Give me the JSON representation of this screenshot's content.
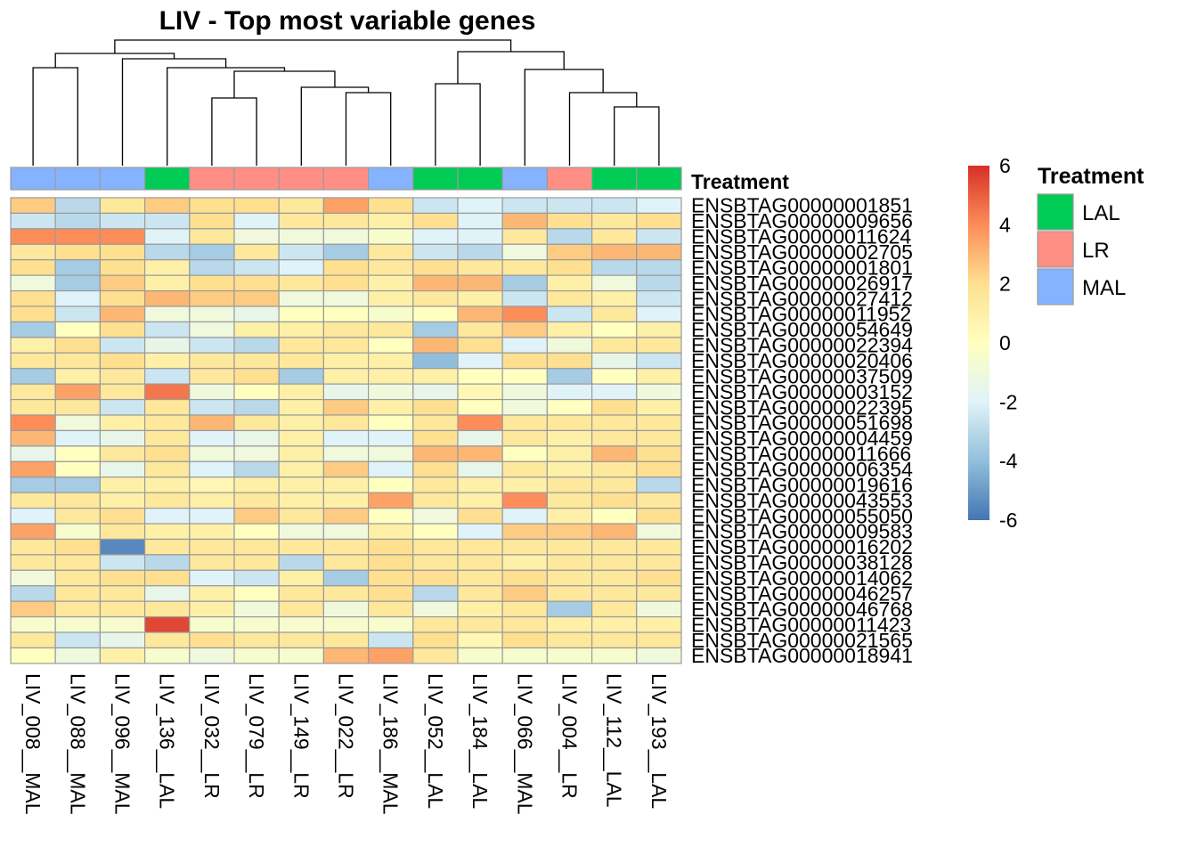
{
  "chart_data": {
    "type": "heatmap",
    "title": "LIV - Top most variable genes",
    "samples": [
      "LIV_008__MAL",
      "LIV_088__MAL",
      "LIV_096__MAL",
      "LIV_136__LAL",
      "LIV_032__LR",
      "LIV_079__LR",
      "LIV_149__LR",
      "LIV_022__LR",
      "LIV_186__MAL",
      "LIV_052__LAL",
      "LIV_184__LAL",
      "LIV_066__MAL",
      "LIV_004__LR",
      "LIV_112__LAL",
      "LIV_193__LAL"
    ],
    "treatment": [
      "MAL",
      "MAL",
      "MAL",
      "LAL",
      "LR",
      "LR",
      "LR",
      "LR",
      "MAL",
      "LAL",
      "LAL",
      "MAL",
      "LR",
      "LAL",
      "LAL"
    ],
    "annotation_label": "Treatment",
    "annotation_colors": {
      "LAL": "#00CC55",
      "LR": "#FF8F85",
      "MAL": "#86B3FF"
    },
    "genes": [
      "ENSBTAG00000001851",
      "ENSBTAG00000009656",
      "ENSBTAG00000011624",
      "ENSBTAG00000002705",
      "ENSBTAG00000001801",
      "ENSBTAG00000026917",
      "ENSBTAG00000027412",
      "ENSBTAG00000011952",
      "ENSBTAG00000054649",
      "ENSBTAG00000022394",
      "ENSBTAG00000020406",
      "ENSBTAG00000037509",
      "ENSBTAG00000003152",
      "ENSBTAG00000022395",
      "ENSBTAG00000051698",
      "ENSBTAG00000004459",
      "ENSBTAG00000011666",
      "ENSBTAG00000006354",
      "ENSBTAG00000019616",
      "ENSBTAG00000043553",
      "ENSBTAG00000055050",
      "ENSBTAG00000009583",
      "ENSBTAG00000016202",
      "ENSBTAG00000038128",
      "ENSBTAG00000014062",
      "ENSBTAG00000046257",
      "ENSBTAG00000046768",
      "ENSBTAG00000011423",
      "ENSBTAG00000021565",
      "ENSBTAG00000018941"
    ],
    "values": [
      [
        2.5,
        -3,
        1.5,
        2.5,
        2,
        2,
        1.5,
        3.5,
        2,
        -2.5,
        -2,
        -2.5,
        -2.5,
        -2.5,
        -2
      ],
      [
        -2.5,
        -3,
        -2.5,
        -2.5,
        2,
        -2,
        1.5,
        1.5,
        1,
        2,
        -2,
        3,
        2,
        1.5,
        2
      ],
      [
        4,
        4,
        4,
        -2,
        1.5,
        -1,
        -1,
        -1,
        -0.5,
        -2,
        -2,
        1.5,
        -3,
        1.5,
        -2.5
      ],
      [
        1.5,
        2,
        2,
        -3,
        -3.5,
        1.5,
        -2.5,
        -3.5,
        1.5,
        -2.5,
        -3,
        -1,
        2.5,
        3,
        3
      ],
      [
        2,
        -3.5,
        2,
        1,
        -3,
        -2.5,
        -2,
        2,
        1.5,
        2,
        1.5,
        1.5,
        2,
        -3,
        -3
      ],
      [
        -1,
        -3.5,
        2.5,
        1,
        2,
        2,
        1.5,
        2,
        1,
        3,
        3,
        -3.5,
        1,
        -1,
        -3
      ],
      [
        2,
        -2,
        2,
        3,
        2.5,
        2.5,
        -1,
        -1,
        1,
        1.5,
        1,
        -2.5,
        1.5,
        1,
        -2.5
      ],
      [
        2,
        -2.5,
        3,
        -1,
        -1,
        -1.5,
        0,
        0,
        -0.5,
        0,
        3,
        4,
        -2.5,
        1.5,
        -2
      ],
      [
        -3.5,
        0,
        2,
        -2.5,
        -1,
        1,
        1,
        1.5,
        1.5,
        -3.5,
        1.5,
        2.5,
        1,
        0,
        1
      ],
      [
        1,
        2,
        -2.5,
        -1.5,
        -2.5,
        -3,
        1.5,
        1.5,
        0,
        3,
        2,
        -2,
        -1,
        1.5,
        1.5
      ],
      [
        1.5,
        1.5,
        2,
        1,
        1.5,
        1.5,
        1.5,
        1,
        1,
        -4,
        -2,
        2,
        2,
        -1.5,
        -2.5
      ],
      [
        -3.5,
        1,
        1.5,
        -2.5,
        1.5,
        2,
        -3.5,
        1,
        1,
        1,
        0,
        0,
        -3.5,
        0,
        1
      ],
      [
        1.5,
        3.5,
        1.5,
        4.5,
        -1,
        0,
        1,
        -1.5,
        -1,
        -1.5,
        0.5,
        -1,
        -2,
        -2,
        -1
      ],
      [
        1.5,
        1.5,
        -2.5,
        1.5,
        -2.5,
        -3,
        1,
        2.5,
        1,
        2,
        0,
        -1,
        0,
        2,
        1
      ],
      [
        4,
        -1,
        1,
        1.5,
        3,
        1.5,
        1,
        1.5,
        0,
        1.5,
        4,
        1.5,
        1.5,
        1.5,
        1.5
      ],
      [
        3,
        -2,
        -1.5,
        1.5,
        -2,
        -1.5,
        1,
        -2,
        -2,
        2,
        -1.5,
        1.5,
        1,
        1.5,
        1.5
      ],
      [
        -1.5,
        0,
        1.5,
        2,
        -1,
        -1,
        1,
        -1,
        -1,
        3,
        3,
        0,
        1,
        3,
        2
      ],
      [
        3.5,
        0,
        -1.5,
        1.5,
        -2,
        -3,
        1,
        2.5,
        -2,
        2,
        -1.5,
        1.5,
        1,
        1.5,
        2
      ],
      [
        -3.5,
        -3.5,
        1,
        1,
        0.5,
        1,
        1,
        1,
        0,
        1.5,
        1,
        1,
        1.5,
        1.5,
        -3
      ],
      [
        1.5,
        1.5,
        1,
        1.5,
        1,
        1.5,
        1,
        1,
        3.5,
        1.5,
        1,
        4,
        1.5,
        2,
        1.5
      ],
      [
        -2,
        1.5,
        2,
        -2,
        -2,
        2.5,
        1.5,
        2.5,
        0,
        -1,
        2,
        -2,
        1,
        0,
        2
      ],
      [
        3.5,
        -0.5,
        1.5,
        1,
        1,
        0,
        -1,
        -1,
        1,
        0,
        -2,
        2.5,
        2.5,
        3,
        -1
      ],
      [
        1.5,
        2,
        -5.5,
        1.5,
        1.5,
        1.5,
        1.5,
        1.5,
        2,
        1.5,
        1.5,
        1.5,
        1.5,
        1.5,
        1.5
      ],
      [
        1.5,
        1.5,
        -2.5,
        -3,
        1.5,
        1.5,
        -3,
        1.5,
        2,
        1.5,
        1.5,
        1,
        1.5,
        1.5,
        1.5
      ],
      [
        -1,
        1.5,
        2,
        2,
        -2,
        -2.5,
        1,
        -3.5,
        2,
        2,
        1.5,
        2,
        1.5,
        1.5,
        2
      ],
      [
        -3,
        1.5,
        1.5,
        -1.5,
        1,
        0,
        1.5,
        1.5,
        2,
        -3,
        1.5,
        2.5,
        1.5,
        1.5,
        1.5
      ],
      [
        2.5,
        1.5,
        1.5,
        1.5,
        1,
        -1,
        1.5,
        -1,
        1.5,
        -1,
        1,
        1.5,
        -3.5,
        1.5,
        -1
      ],
      [
        -0.5,
        -0.5,
        -0.5,
        5.5,
        -0.5,
        -0.5,
        -0.5,
        -0.5,
        -0.5,
        1.5,
        1.5,
        1.5,
        1,
        1,
        1
      ],
      [
        1.5,
        -2.5,
        -1.5,
        1.5,
        2,
        1.5,
        1.5,
        1.5,
        -2.5,
        2,
        0.5,
        2,
        1.5,
        1.5,
        1.5
      ],
      [
        0,
        -1,
        1,
        -0.5,
        -1,
        -0.5,
        -0.5,
        3,
        3.5,
        1.5,
        -0.5,
        -0.5,
        -0.5,
        -0.5,
        -1
      ]
    ],
    "colorbar": {
      "range": [
        -6,
        6
      ],
      "ticks": [
        6,
        4,
        2,
        0,
        -2,
        -4,
        -6
      ],
      "colors": [
        "#4575B4",
        "#91BFDB",
        "#E0F3F8",
        "#FFFFBF",
        "#FEE090",
        "#FC8D59",
        "#D73027"
      ]
    },
    "legend": {
      "title": "Treatment",
      "items": [
        "LAL",
        "LR",
        "MAL"
      ]
    }
  }
}
